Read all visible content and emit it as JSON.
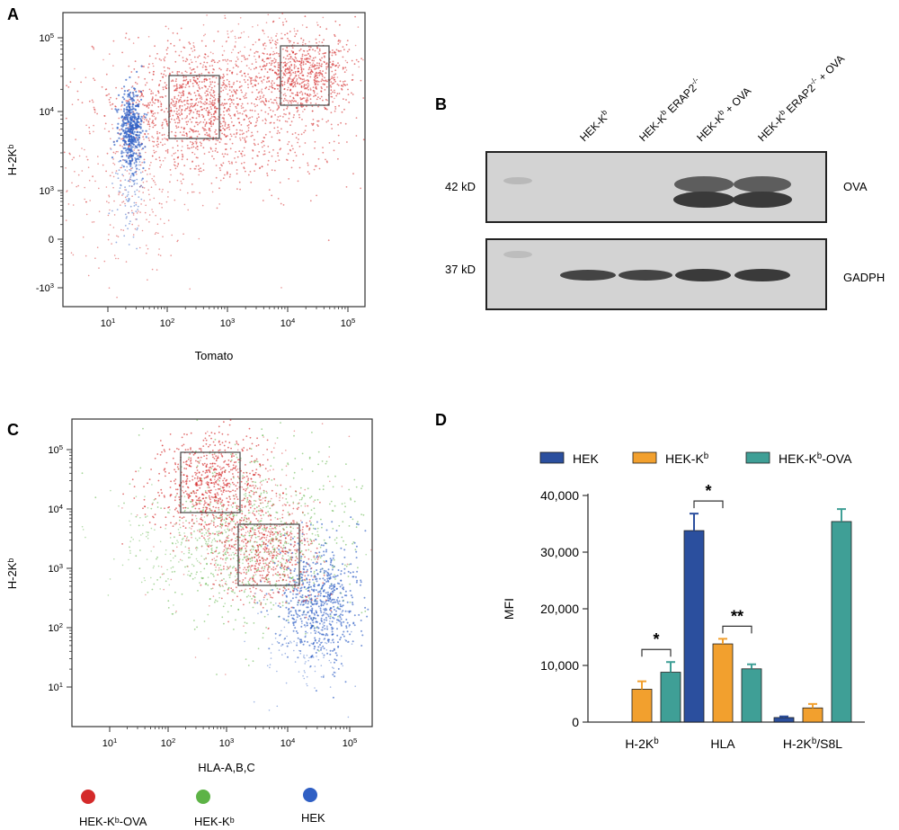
{
  "panels": {
    "A": {
      "letter": "A",
      "xlabel": "Tomato",
      "ylabel": "H-2Kᵇ",
      "xticks": [
        {
          "base": "10",
          "exp": "1"
        },
        {
          "base": "10",
          "exp": "2"
        },
        {
          "base": "10",
          "exp": "3"
        },
        {
          "base": "10",
          "exp": "4"
        },
        {
          "base": "10",
          "exp": "5"
        }
      ],
      "yticks": [
        {
          "base": "10",
          "exp": "5"
        },
        {
          "base": "10",
          "exp": "4"
        },
        {
          "base": "10",
          "exp": "3"
        },
        {
          "base": "0",
          "exp": ""
        },
        {
          "base": "-10",
          "exp": "3"
        }
      ]
    },
    "B": {
      "letter": "B",
      "lanes": [
        {
          "main": "HEK-K",
          "sup": "b",
          "rest": ""
        },
        {
          "main": "HEK-K",
          "sup": "b",
          "rest": " ERAP2",
          "sup2": "-/-"
        },
        {
          "main": "HEK-K",
          "sup": "b",
          "rest": " + OVA"
        },
        {
          "main": "HEK-K",
          "sup": "b",
          "rest": " ERAP2",
          "sup2": "-/-",
          "rest2": " + OVA"
        }
      ],
      "markers": [
        "42 kD",
        "37 kD"
      ],
      "proteins": [
        "OVA",
        "GADPH"
      ]
    },
    "C": {
      "letter": "C",
      "xlabel": "HLA-A,B,C",
      "ylabel": "H-2Kᵇ",
      "xticks": [
        {
          "base": "10",
          "exp": "1"
        },
        {
          "base": "10",
          "exp": "2"
        },
        {
          "base": "10",
          "exp": "3"
        },
        {
          "base": "10",
          "exp": "4"
        },
        {
          "base": "10",
          "exp": "5"
        }
      ],
      "yticks": [
        {
          "base": "10",
          "exp": "5"
        },
        {
          "base": "10",
          "exp": "4"
        },
        {
          "base": "10",
          "exp": "3"
        },
        {
          "base": "10",
          "exp": "2"
        },
        {
          "base": "10",
          "exp": "1"
        }
      ],
      "legend": [
        {
          "label": "HEK-Kᵇ-OVA",
          "color": "#d42a2a"
        },
        {
          "label": "HEK-Kᵇ",
          "color": "#5db346"
        },
        {
          "label": "HEK",
          "color": "#2f5fc4"
        }
      ]
    },
    "D": {
      "letter": "D"
    }
  },
  "colors": {
    "tomato_red": "#d42a2a",
    "green": "#5db346",
    "blue": "#2f5fc4",
    "bar_hek": "#2b4f9e",
    "bar_hekkb": "#f2a02e",
    "bar_hekkbova": "#3f9f96"
  },
  "chart_data": {
    "type": "bar",
    "title": "",
    "xlabel": "",
    "ylabel": "MFI",
    "ylim": [
      0,
      40000
    ],
    "yticks": [
      "0",
      "10,000",
      "20,000",
      "30,000",
      "40,000"
    ],
    "categories": [
      {
        "main": "H-2K",
        "sup": "b",
        "rest": ""
      },
      {
        "main": "HLA",
        "sup": "",
        "rest": ""
      },
      {
        "main": "H-2K",
        "sup": "b",
        "rest": "/S8L"
      }
    ],
    "series": [
      {
        "name": "HEK",
        "name_main": "HEK",
        "name_sup": "",
        "name_rest": "",
        "color": "#2b4f9e",
        "values": [
          0,
          33800,
          800
        ],
        "errors": [
          0,
          3000,
          200
        ]
      },
      {
        "name": "HEK-Kb",
        "name_main": "HEK-K",
        "name_sup": "b",
        "name_rest": "",
        "color": "#f2a02e",
        "values": [
          5800,
          13800,
          2500
        ],
        "errors": [
          1400,
          900,
          700
        ]
      },
      {
        "name": "HEK-Kb-OVA",
        "name_main": "HEK-K",
        "name_sup": "b",
        "name_rest": "-OVA",
        "color": "#3f9f96",
        "values": [
          8800,
          9400,
          35400
        ],
        "errors": [
          1800,
          800,
          2200
        ]
      }
    ],
    "significance": [
      {
        "category": 0,
        "from_series": 1,
        "to_series": 2,
        "label": "*"
      },
      {
        "category": 1,
        "from_series": 0,
        "to_series": 1,
        "label": "*"
      },
      {
        "category": 1,
        "from_series": 1,
        "to_series": 2,
        "label": "**"
      }
    ]
  }
}
